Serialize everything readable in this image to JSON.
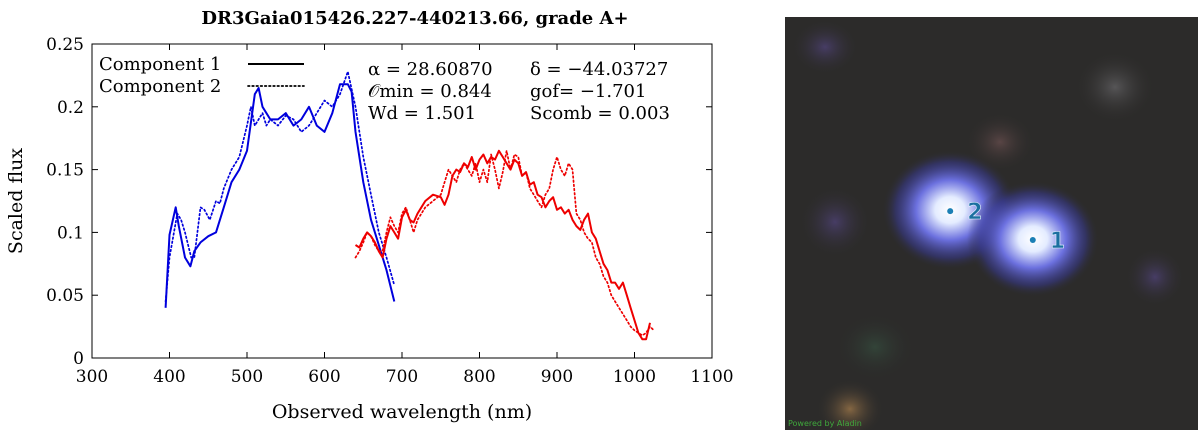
{
  "chart_data": {
    "type": "line",
    "title": "DR3Gaia015426.227-440213.66, grade A+",
    "xlabel": "Observed wavelength (nm)",
    "ylabel": "Scaled flux",
    "xlim": [
      300,
      1100
    ],
    "ylim": [
      0,
      0.25
    ],
    "xticks": [
      "300",
      "400",
      "500",
      "600",
      "700",
      "800",
      "900",
      "1000",
      "1100"
    ],
    "yticks": [
      "0",
      "0.05",
      "0.1",
      "0.15",
      "0.2",
      "0.25"
    ],
    "legend_position": "top-left",
    "legend": [
      {
        "label": "Component 1",
        "style": "solid"
      },
      {
        "label": "Component 2",
        "style": "dotted"
      }
    ],
    "annotations": [
      {
        "col": 0,
        "row": 0,
        "text": "α = 28.60870"
      },
      {
        "col": 0,
        "row": 1,
        "text": "𝒪min = 0.844"
      },
      {
        "col": 0,
        "row": 2,
        "text": "Wd = 1.501"
      },
      {
        "col": 1,
        "row": 0,
        "text": "δ = −44.03727"
      },
      {
        "col": 1,
        "row": 1,
        "text": "gof= −1.701"
      },
      {
        "col": 1,
        "row": 2,
        "text": "Scomb = 0.003"
      }
    ],
    "series": [
      {
        "name": "Component 1",
        "arm": "blue",
        "style": "solid",
        "color": "#0000dd",
        "x": [
          395,
          400,
          408,
          412,
          420,
          427,
          432,
          440,
          450,
          460,
          470,
          480,
          490,
          500,
          510,
          515,
          520,
          530,
          540,
          550,
          560,
          570,
          580,
          590,
          600,
          610,
          620,
          630,
          635,
          640,
          650,
          660,
          670,
          680,
          690
        ],
        "y": [
          0.04,
          0.098,
          0.12,
          0.105,
          0.08,
          0.073,
          0.085,
          0.092,
          0.097,
          0.1,
          0.12,
          0.14,
          0.15,
          0.165,
          0.21,
          0.215,
          0.2,
          0.19,
          0.19,
          0.195,
          0.185,
          0.19,
          0.2,
          0.185,
          0.18,
          0.195,
          0.218,
          0.218,
          0.212,
          0.18,
          0.14,
          0.11,
          0.09,
          0.07,
          0.045
        ]
      },
      {
        "name": "Component 2",
        "arm": "blue",
        "style": "dotted",
        "color": "#0000dd",
        "x": [
          395,
          400,
          410,
          415,
          420,
          428,
          432,
          440,
          445,
          452,
          460,
          465,
          470,
          480,
          490,
          500,
          505,
          510,
          520,
          525,
          530,
          540,
          550,
          560,
          570,
          580,
          590,
          600,
          610,
          620,
          630,
          640,
          650,
          660,
          670,
          680,
          690
        ],
        "y": [
          0.045,
          0.08,
          0.115,
          0.11,
          0.1,
          0.08,
          0.08,
          0.12,
          0.118,
          0.11,
          0.125,
          0.123,
          0.135,
          0.15,
          0.16,
          0.185,
          0.2,
          0.185,
          0.195,
          0.185,
          0.19,
          0.185,
          0.193,
          0.19,
          0.18,
          0.185,
          0.195,
          0.205,
          0.2,
          0.21,
          0.228,
          0.2,
          0.16,
          0.13,
          0.1,
          0.08,
          0.058
        ]
      },
      {
        "name": "Component 1",
        "arm": "red",
        "style": "solid",
        "color": "#ee0000",
        "x": [
          640,
          645,
          650,
          655,
          660,
          665,
          670,
          675,
          680,
          685,
          690,
          695,
          700,
          705,
          710,
          715,
          720,
          725,
          730,
          740,
          750,
          755,
          760,
          765,
          770,
          775,
          780,
          785,
          790,
          795,
          800,
          805,
          810,
          815,
          820,
          825,
          830,
          835,
          840,
          845,
          850,
          855,
          860,
          865,
          870,
          875,
          880,
          885,
          890,
          895,
          900,
          905,
          910,
          915,
          920,
          925,
          930,
          935,
          940,
          945,
          950,
          955,
          960,
          965,
          970,
          975,
          980,
          985,
          990,
          995,
          1000,
          1005,
          1010,
          1015,
          1020
        ],
        "y": [
          0.09,
          0.088,
          0.095,
          0.1,
          0.097,
          0.092,
          0.085,
          0.08,
          0.095,
          0.105,
          0.1,
          0.095,
          0.112,
          0.118,
          0.11,
          0.108,
          0.115,
          0.12,
          0.125,
          0.13,
          0.128,
          0.122,
          0.13,
          0.145,
          0.15,
          0.148,
          0.155,
          0.152,
          0.16,
          0.15,
          0.158,
          0.162,
          0.155,
          0.16,
          0.158,
          0.165,
          0.16,
          0.155,
          0.15,
          0.158,
          0.155,
          0.145,
          0.148,
          0.138,
          0.14,
          0.13,
          0.128,
          0.12,
          0.125,
          0.128,
          0.118,
          0.12,
          0.115,
          0.118,
          0.11,
          0.105,
          0.102,
          0.11,
          0.115,
          0.1,
          0.095,
          0.085,
          0.075,
          0.07,
          0.06,
          0.06,
          0.055,
          0.06,
          0.05,
          0.04,
          0.03,
          0.02,
          0.015,
          0.015,
          0.028
        ]
      },
      {
        "name": "Component 2",
        "arm": "red",
        "style": "dotted",
        "color": "#ee0000",
        "x": [
          640,
          645,
          650,
          655,
          660,
          665,
          670,
          675,
          680,
          685,
          690,
          695,
          700,
          705,
          710,
          715,
          720,
          725,
          730,
          740,
          750,
          755,
          760,
          765,
          770,
          775,
          780,
          785,
          790,
          795,
          800,
          805,
          810,
          815,
          820,
          825,
          830,
          835,
          840,
          845,
          850,
          855,
          860,
          865,
          870,
          875,
          880,
          885,
          890,
          895,
          900,
          905,
          910,
          915,
          920,
          925,
          930,
          935,
          940,
          945,
          950,
          955,
          960,
          965,
          970,
          975,
          980,
          985,
          990,
          995,
          1000,
          1005,
          1010,
          1015,
          1020,
          1025
        ],
        "y": [
          0.08,
          0.085,
          0.092,
          0.1,
          0.097,
          0.09,
          0.085,
          0.085,
          0.1,
          0.112,
          0.105,
          0.1,
          0.115,
          0.12,
          0.11,
          0.1,
          0.11,
          0.115,
          0.12,
          0.125,
          0.13,
          0.14,
          0.15,
          0.145,
          0.14,
          0.15,
          0.155,
          0.15,
          0.145,
          0.155,
          0.14,
          0.15,
          0.14,
          0.162,
          0.15,
          0.135,
          0.148,
          0.165,
          0.15,
          0.162,
          0.16,
          0.145,
          0.148,
          0.135,
          0.13,
          0.125,
          0.12,
          0.13,
          0.135,
          0.15,
          0.16,
          0.15,
          0.145,
          0.155,
          0.15,
          0.115,
          0.11,
          0.1,
          0.095,
          0.092,
          0.08,
          0.075,
          0.065,
          0.06,
          0.05,
          0.045,
          0.04,
          0.035,
          0.03,
          0.025,
          0.022,
          0.02,
          0.018,
          0.02,
          0.025,
          0.022
        ]
      }
    ]
  },
  "sky": {
    "credit": "Powered by Aladin",
    "sources": [
      {
        "label": "2",
        "ra_frac": 0.4,
        "dec_frac": 0.47
      },
      {
        "label": "1",
        "ra_frac": 0.6,
        "dec_frac": 0.54
      }
    ]
  }
}
